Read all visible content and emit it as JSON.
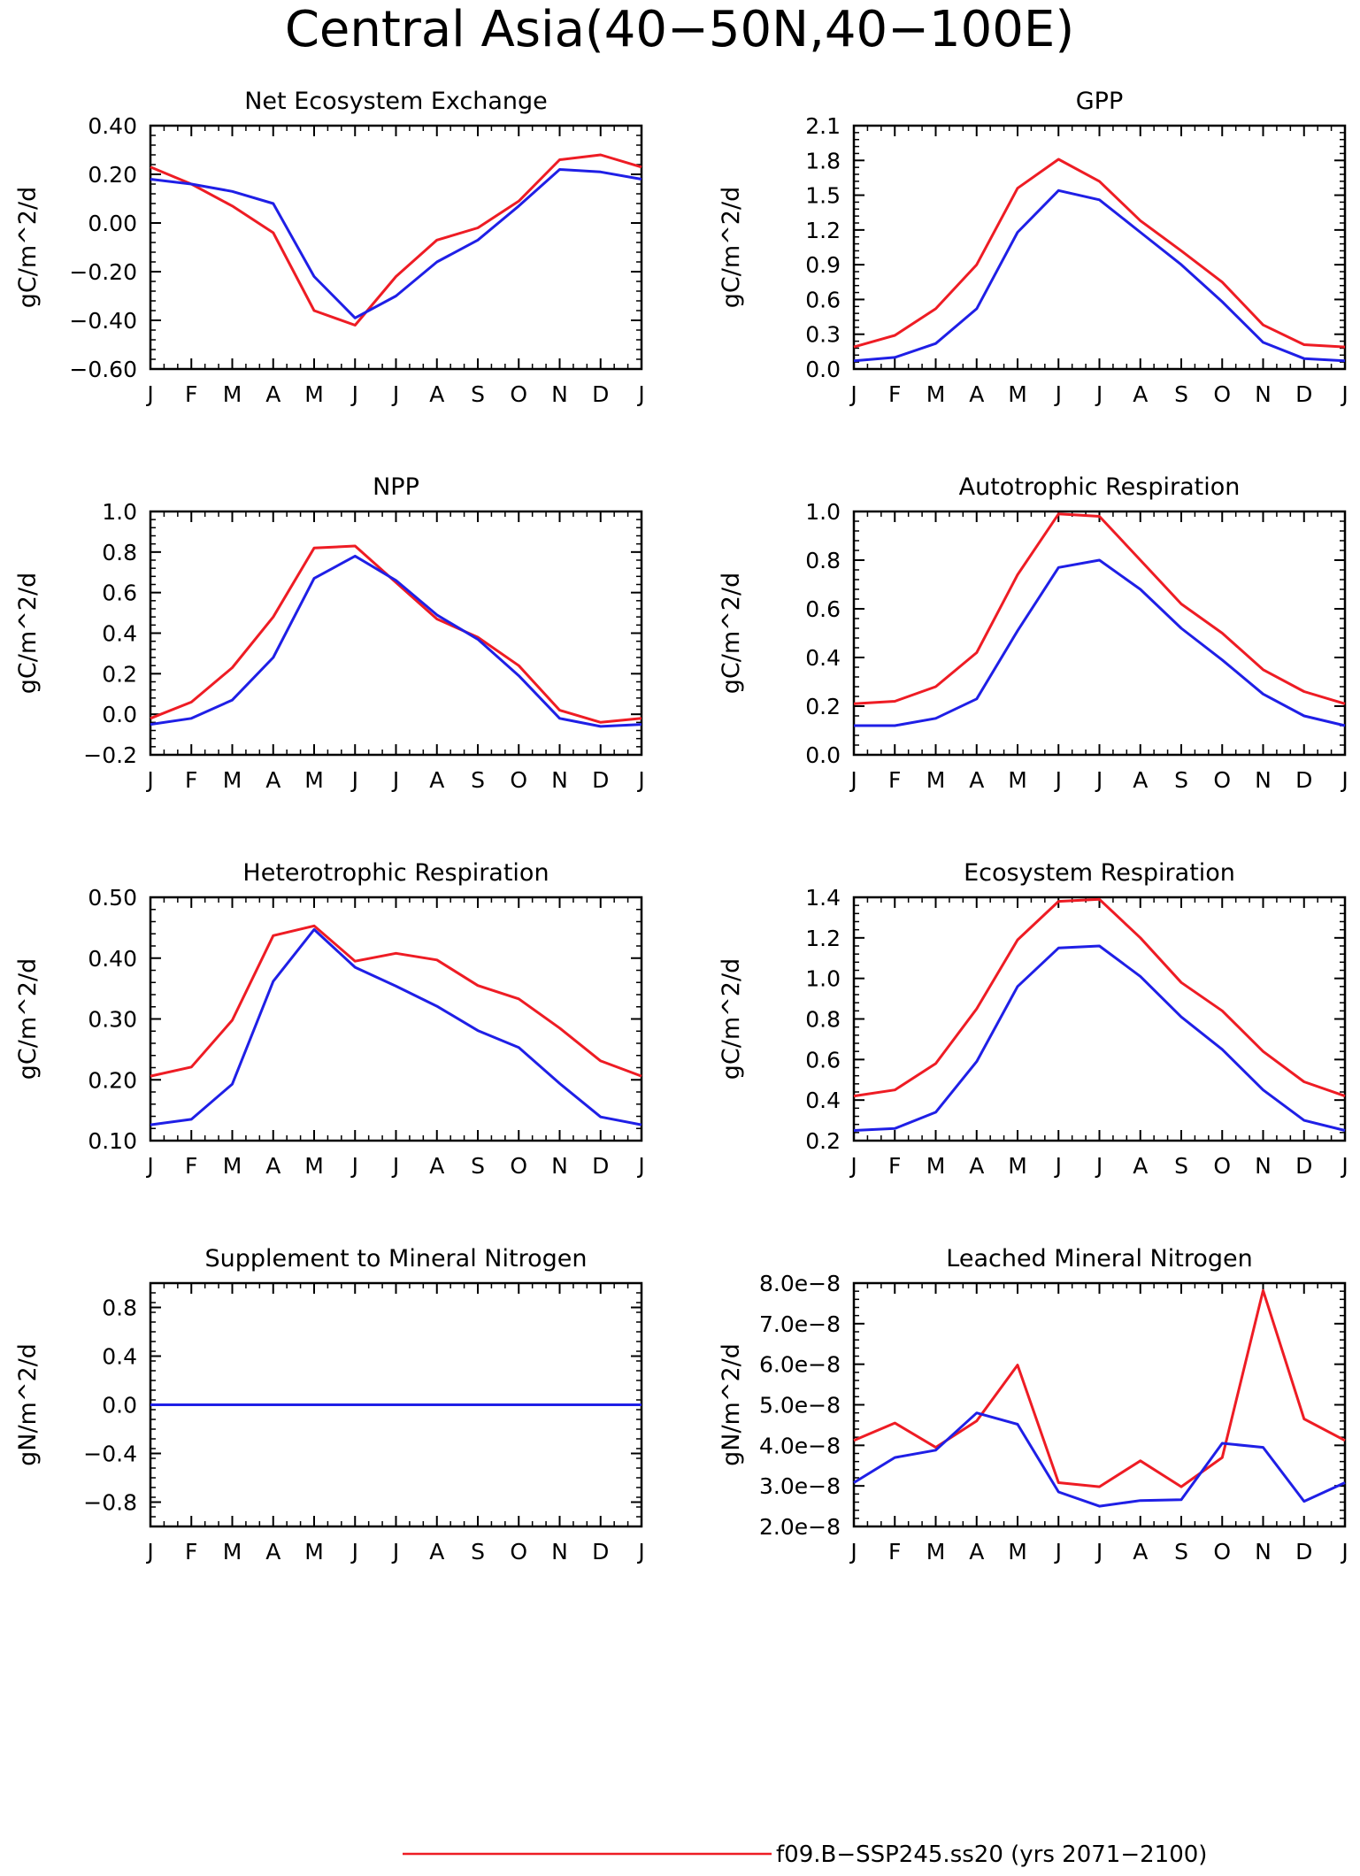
{
  "page": {
    "title": "Central Asia(40−50N,40−100E)",
    "legend": {
      "label": "f09.B−SSP245.ss20 (yrs 2071−2100)",
      "color": "#ee1c24"
    }
  },
  "colors": {
    "series_red": "#ee1c24",
    "series_blue": "#1f1fe6"
  },
  "chart_data": [
    {
      "type": "line",
      "title": "Net Ecosystem Exchange",
      "ylabel": "gC/m^2/d",
      "x": [
        "J",
        "F",
        "M",
        "A",
        "M",
        "J",
        "J",
        "A",
        "S",
        "O",
        "N",
        "D",
        "J"
      ],
      "ylim": [
        -0.6,
        0.4
      ],
      "yticks": [
        -0.6,
        -0.4,
        -0.2,
        0.0,
        0.2,
        0.4
      ],
      "ytick_labels": [
        "−0.60",
        "−0.40",
        "−0.20",
        "0.00",
        "0.20",
        "0.40"
      ],
      "series": [
        {
          "color": "red",
          "values": [
            0.23,
            0.16,
            0.07,
            -0.04,
            -0.36,
            -0.42,
            -0.22,
            -0.07,
            -0.02,
            0.09,
            0.26,
            0.28,
            0.23
          ]
        },
        {
          "color": "blue",
          "values": [
            0.18,
            0.16,
            0.13,
            0.08,
            -0.22,
            -0.39,
            -0.3,
            -0.16,
            -0.07,
            0.07,
            0.22,
            0.21,
            0.18
          ]
        }
      ]
    },
    {
      "type": "line",
      "title": "GPP",
      "ylabel": "gC/m^2/d",
      "x": [
        "J",
        "F",
        "M",
        "A",
        "M",
        "J",
        "J",
        "A",
        "S",
        "O",
        "N",
        "D",
        "J"
      ],
      "ylim": [
        0.0,
        2.1
      ],
      "yticks": [
        0.0,
        0.3,
        0.6,
        0.9,
        1.2,
        1.5,
        1.8,
        2.1
      ],
      "ytick_labels": [
        "0.0",
        "0.3",
        "0.6",
        "0.9",
        "1.2",
        "1.5",
        "1.8",
        "2.1"
      ],
      "series": [
        {
          "color": "red",
          "values": [
            0.19,
            0.29,
            0.52,
            0.9,
            1.56,
            1.81,
            1.62,
            1.28,
            1.02,
            0.75,
            0.38,
            0.21,
            0.19
          ]
        },
        {
          "color": "blue",
          "values": [
            0.07,
            0.1,
            0.22,
            0.52,
            1.18,
            1.54,
            1.46,
            1.18,
            0.9,
            0.58,
            0.23,
            0.09,
            0.07
          ]
        }
      ]
    },
    {
      "type": "line",
      "title": "NPP",
      "ylabel": "gC/m^2/d",
      "x": [
        "J",
        "F",
        "M",
        "A",
        "M",
        "J",
        "J",
        "A",
        "S",
        "O",
        "N",
        "D",
        "J"
      ],
      "ylim": [
        -0.2,
        1.0
      ],
      "yticks": [
        -0.2,
        0.0,
        0.2,
        0.4,
        0.6,
        0.8,
        1.0
      ],
      "ytick_labels": [
        "−0.2",
        "0.0",
        "0.2",
        "0.4",
        "0.6",
        "0.8",
        "1.0"
      ],
      "series": [
        {
          "color": "red",
          "values": [
            -0.02,
            0.06,
            0.23,
            0.48,
            0.82,
            0.83,
            0.65,
            0.47,
            0.38,
            0.24,
            0.02,
            -0.04,
            -0.02
          ]
        },
        {
          "color": "blue",
          "values": [
            -0.05,
            -0.02,
            0.07,
            0.28,
            0.67,
            0.78,
            0.66,
            0.49,
            0.37,
            0.19,
            -0.02,
            -0.06,
            -0.05
          ]
        }
      ]
    },
    {
      "type": "line",
      "title": "Autotrophic Respiration",
      "ylabel": "gC/m^2/d",
      "x": [
        "J",
        "F",
        "M",
        "A",
        "M",
        "J",
        "J",
        "A",
        "S",
        "O",
        "N",
        "D",
        "J"
      ],
      "ylim": [
        0.0,
        1.0
      ],
      "yticks": [
        0.0,
        0.2,
        0.4,
        0.6,
        0.8,
        1.0
      ],
      "ytick_labels": [
        "0.0",
        "0.2",
        "0.4",
        "0.6",
        "0.8",
        "1.0"
      ],
      "series": [
        {
          "color": "red",
          "values": [
            0.21,
            0.22,
            0.28,
            0.42,
            0.74,
            0.99,
            0.98,
            0.8,
            0.62,
            0.5,
            0.35,
            0.26,
            0.21
          ]
        },
        {
          "color": "blue",
          "values": [
            0.12,
            0.12,
            0.15,
            0.23,
            0.51,
            0.77,
            0.8,
            0.68,
            0.52,
            0.39,
            0.25,
            0.16,
            0.12
          ]
        }
      ]
    },
    {
      "type": "line",
      "title": "Heterotrophic Respiration",
      "ylabel": "gC/m^2/d",
      "x": [
        "J",
        "F",
        "M",
        "A",
        "M",
        "J",
        "J",
        "A",
        "S",
        "O",
        "N",
        "D",
        "J"
      ],
      "ylim": [
        0.1,
        0.5
      ],
      "yticks": [
        0.1,
        0.2,
        0.3,
        0.4,
        0.5
      ],
      "ytick_labels": [
        "0.10",
        "0.20",
        "0.30",
        "0.40",
        "0.50"
      ],
      "series": [
        {
          "color": "red",
          "values": [
            0.206,
            0.221,
            0.298,
            0.437,
            0.453,
            0.395,
            0.408,
            0.397,
            0.355,
            0.333,
            0.285,
            0.231,
            0.206
          ]
        },
        {
          "color": "blue",
          "values": [
            0.126,
            0.135,
            0.193,
            0.362,
            0.447,
            0.385,
            0.354,
            0.321,
            0.281,
            0.253,
            0.194,
            0.139,
            0.126
          ]
        }
      ]
    },
    {
      "type": "line",
      "title": "Ecosystem Respiration",
      "ylabel": "gC/m^2/d",
      "x": [
        "J",
        "F",
        "M",
        "A",
        "M",
        "J",
        "J",
        "A",
        "S",
        "O",
        "N",
        "D",
        "J"
      ],
      "ylim": [
        0.2,
        1.4
      ],
      "yticks": [
        0.2,
        0.4,
        0.6,
        0.8,
        1.0,
        1.2,
        1.4
      ],
      "ytick_labels": [
        "0.2",
        "0.4",
        "0.6",
        "0.8",
        "1.0",
        "1.2",
        "1.4"
      ],
      "series": [
        {
          "color": "red",
          "values": [
            0.42,
            0.45,
            0.58,
            0.85,
            1.19,
            1.38,
            1.39,
            1.2,
            0.98,
            0.84,
            0.64,
            0.49,
            0.42
          ]
        },
        {
          "color": "blue",
          "values": [
            0.25,
            0.26,
            0.34,
            0.59,
            0.96,
            1.15,
            1.16,
            1.01,
            0.81,
            0.65,
            0.45,
            0.3,
            0.25
          ]
        }
      ]
    },
    {
      "type": "line",
      "title": "Supplement to Mineral Nitrogen",
      "ylabel": "gN/m^2/d",
      "x": [
        "J",
        "F",
        "M",
        "A",
        "M",
        "J",
        "J",
        "A",
        "S",
        "O",
        "N",
        "D",
        "J"
      ],
      "ylim": [
        -1.0,
        1.0
      ],
      "yticks": [
        -0.8,
        -0.4,
        0.0,
        0.4,
        0.8
      ],
      "ytick_labels": [
        "−0.8",
        "−0.4",
        "0.0",
        "0.4",
        "0.8"
      ],
      "series": [
        {
          "color": "red",
          "values": [
            0,
            0,
            0,
            0,
            0,
            0,
            0,
            0,
            0,
            0,
            0,
            0,
            0
          ]
        },
        {
          "color": "blue",
          "values": [
            0,
            0,
            0,
            0,
            0,
            0,
            0,
            0,
            0,
            0,
            0,
            0,
            0
          ]
        }
      ]
    },
    {
      "type": "line",
      "title": "Leached Mineral Nitrogen",
      "ylabel": "gN/m^2/d",
      "x": [
        "J",
        "F",
        "M",
        "A",
        "M",
        "J",
        "J",
        "A",
        "S",
        "O",
        "N",
        "D",
        "J"
      ],
      "ylim": [
        2e-08,
        8e-08
      ],
      "yticks": [
        2e-08,
        3e-08,
        4e-08,
        5e-08,
        6e-08,
        7e-08,
        8e-08
      ],
      "ytick_labels": [
        "2.0e−8",
        "3.0e−8",
        "4.0e−8",
        "5.0e−8",
        "6.0e−8",
        "7.0e−8",
        "8.0e−8"
      ],
      "series": [
        {
          "color": "red",
          "values": [
            4.12e-08,
            4.55e-08,
            3.95e-08,
            4.6e-08,
            5.98e-08,
            3.08e-08,
            2.98e-08,
            3.62e-08,
            2.98e-08,
            3.7e-08,
            7.82e-08,
            4.65e-08,
            4.12e-08
          ]
        },
        {
          "color": "blue",
          "values": [
            3.08e-08,
            3.7e-08,
            3.88e-08,
            4.8e-08,
            4.52e-08,
            2.85e-08,
            2.5e-08,
            2.64e-08,
            2.66e-08,
            4.05e-08,
            3.95e-08,
            2.62e-08,
            3.08e-08
          ]
        }
      ]
    }
  ]
}
